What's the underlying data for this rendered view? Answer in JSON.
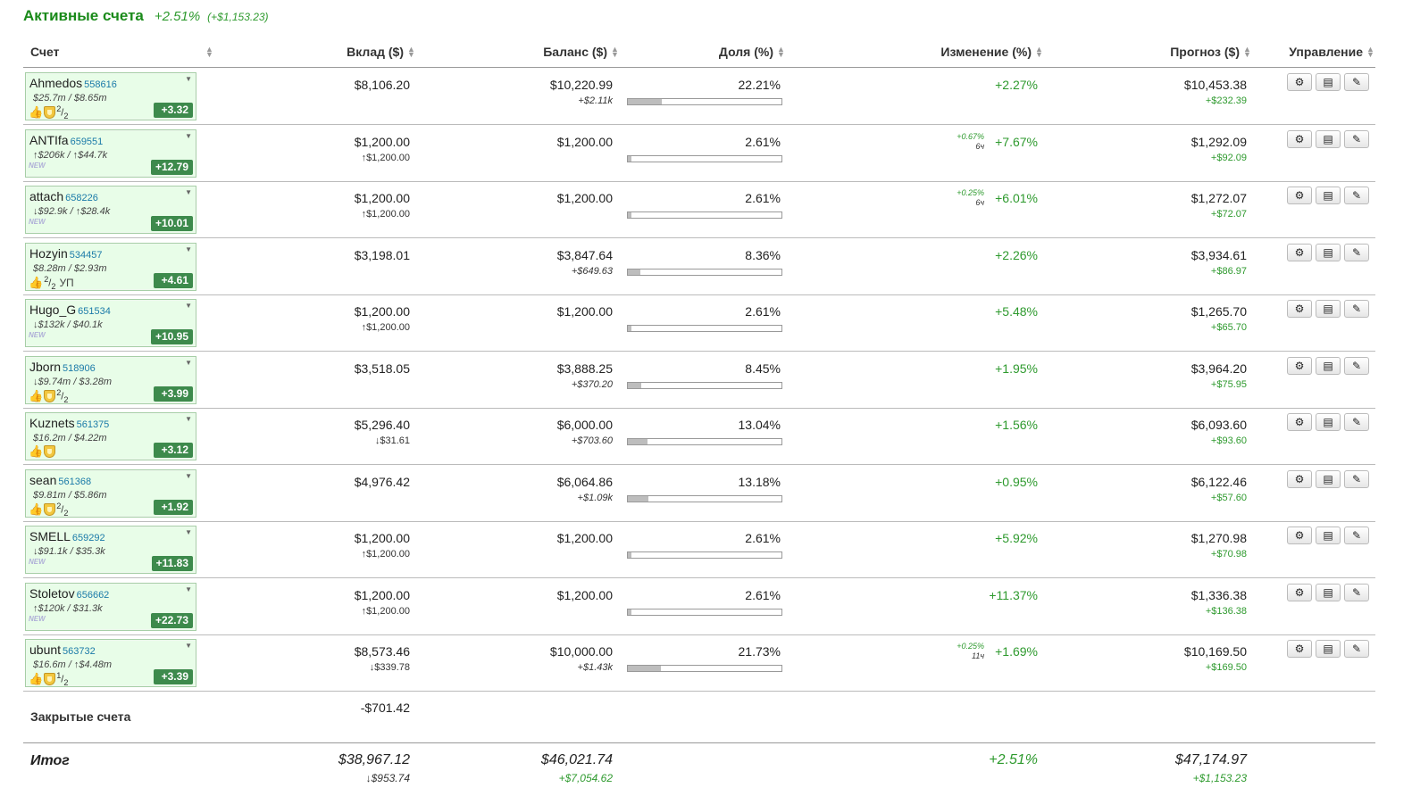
{
  "header": {
    "title": "Активные счета",
    "change_pct": "+2.51%",
    "change_abs": "(+$1,153.23)"
  },
  "columns": {
    "account": "Счет",
    "deposit": "Вклад ($)",
    "balance": "Баланс ($)",
    "share": "Доля (%)",
    "change": "Изменение (%)",
    "forecast": "Прогноз ($)",
    "manage": "Управление"
  },
  "icons": {
    "thumb": "thumbs-up-icon",
    "shield": "shield-icon",
    "settings": "gear-icon",
    "report": "list-icon",
    "edit": "pencil-icon"
  },
  "colors": {
    "accent_green": "#1a8a1a",
    "positive": "#2e9a2e",
    "card_bg": "#e8fde8",
    "score_bg": "#3d8a4c",
    "account_id": "#1a7aa8"
  },
  "rows": [
    {
      "name": "Ahmedos",
      "id": "558616",
      "stats": "$25.7m / $8.65m",
      "badges": "thumb-shield-frac",
      "frac_num": "2",
      "frac_den": "2",
      "extra": "",
      "score": "+3.32",
      "deposit": "$8,106.20",
      "deposit_sub": "",
      "balance": "$10,220.99",
      "balance_sub": "+$2.11k",
      "share": "22.21%",
      "share_value": 22.21,
      "mini_pct": "",
      "mini_time": "",
      "change": "+2.27%",
      "forecast": "$10,453.38",
      "forecast_sub": "+$232.39"
    },
    {
      "name": "ANTIfa",
      "id": "659551",
      "stats": "↑$206k / ↑$44.7k",
      "badges": "new",
      "frac_num": "",
      "frac_den": "",
      "extra": "",
      "score": "+12.79",
      "deposit": "$1,200.00",
      "deposit_sub": "↑$1,200.00",
      "balance": "$1,200.00",
      "balance_sub": "",
      "share": "2.61%",
      "share_value": 2.61,
      "mini_pct": "+0.67%",
      "mini_time": "6ч",
      "change": "+7.67%",
      "forecast": "$1,292.09",
      "forecast_sub": "+$92.09"
    },
    {
      "name": "attach",
      "id": "658226",
      "stats": "↓$92.9k / ↑$28.4k",
      "badges": "new",
      "frac_num": "",
      "frac_den": "",
      "extra": "",
      "score": "+10.01",
      "deposit": "$1,200.00",
      "deposit_sub": "↑$1,200.00",
      "balance": "$1,200.00",
      "balance_sub": "",
      "share": "2.61%",
      "share_value": 2.61,
      "mini_pct": "+0.25%",
      "mini_time": "6ч",
      "change": "+6.01%",
      "forecast": "$1,272.07",
      "forecast_sub": "+$72.07"
    },
    {
      "name": "Hozyin",
      "id": "534457",
      "stats": "$8.28m / $2.93m",
      "badges": "thumb-frac",
      "frac_num": "2",
      "frac_den": "2",
      "extra": "УП",
      "score": "+4.61",
      "deposit": "$3,198.01",
      "deposit_sub": "",
      "balance": "$3,847.64",
      "balance_sub": "+$649.63",
      "share": "8.36%",
      "share_value": 8.36,
      "mini_pct": "",
      "mini_time": "",
      "change": "+2.26%",
      "forecast": "$3,934.61",
      "forecast_sub": "+$86.97"
    },
    {
      "name": "Hugo_G",
      "id": "651534",
      "stats": "↓$132k / $40.1k",
      "badges": "new",
      "frac_num": "",
      "frac_den": "",
      "extra": "",
      "score": "+10.95",
      "deposit": "$1,200.00",
      "deposit_sub": "↑$1,200.00",
      "balance": "$1,200.00",
      "balance_sub": "",
      "share": "2.61%",
      "share_value": 2.61,
      "mini_pct": "",
      "mini_time": "",
      "change": "+5.48%",
      "forecast": "$1,265.70",
      "forecast_sub": "+$65.70"
    },
    {
      "name": "Jborn",
      "id": "518906",
      "stats": "↓$9.74m / $3.28m",
      "badges": "thumb-shield-frac",
      "frac_num": "2",
      "frac_den": "2",
      "extra": "",
      "score": "+3.99",
      "deposit": "$3,518.05",
      "deposit_sub": "",
      "balance": "$3,888.25",
      "balance_sub": "+$370.20",
      "share": "8.45%",
      "share_value": 8.45,
      "mini_pct": "",
      "mini_time": "",
      "change": "+1.95%",
      "forecast": "$3,964.20",
      "forecast_sub": "+$75.95"
    },
    {
      "name": "Kuznets",
      "id": "561375",
      "stats": "$16.2m / $4.22m",
      "badges": "thumb-shield",
      "frac_num": "",
      "frac_den": "",
      "extra": "",
      "score": "+3.12",
      "deposit": "$5,296.40",
      "deposit_sub": "↓$31.61",
      "balance": "$6,000.00",
      "balance_sub": "+$703.60",
      "share": "13.04%",
      "share_value": 13.04,
      "mini_pct": "",
      "mini_time": "",
      "change": "+1.56%",
      "forecast": "$6,093.60",
      "forecast_sub": "+$93.60"
    },
    {
      "name": "sean",
      "id": "561368",
      "stats": "$9.81m / $5.86m",
      "badges": "thumb-shield-frac",
      "frac_num": "2",
      "frac_den": "2",
      "extra": "",
      "score": "+1.92",
      "deposit": "$4,976.42",
      "deposit_sub": "",
      "balance": "$6,064.86",
      "balance_sub": "+$1.09k",
      "share": "13.18%",
      "share_value": 13.18,
      "mini_pct": "",
      "mini_time": "",
      "change": "+0.95%",
      "forecast": "$6,122.46",
      "forecast_sub": "+$57.60"
    },
    {
      "name": "SMELL",
      "id": "659292",
      "stats": "↓$91.1k / $35.3k",
      "badges": "new",
      "frac_num": "",
      "frac_den": "",
      "extra": "",
      "score": "+11.83",
      "deposit": "$1,200.00",
      "deposit_sub": "↑$1,200.00",
      "balance": "$1,200.00",
      "balance_sub": "",
      "share": "2.61%",
      "share_value": 2.61,
      "mini_pct": "",
      "mini_time": "",
      "change": "+5.92%",
      "forecast": "$1,270.98",
      "forecast_sub": "+$70.98"
    },
    {
      "name": "Stoletov",
      "id": "656662",
      "stats": "↑$120k / $31.3k",
      "badges": "new",
      "frac_num": "",
      "frac_den": "",
      "extra": "",
      "score": "+22.73",
      "deposit": "$1,200.00",
      "deposit_sub": "↑$1,200.00",
      "balance": "$1,200.00",
      "balance_sub": "",
      "share": "2.61%",
      "share_value": 2.61,
      "mini_pct": "",
      "mini_time": "",
      "change": "+11.37%",
      "forecast": "$1,336.38",
      "forecast_sub": "+$136.38"
    },
    {
      "name": "ubunt",
      "id": "563732",
      "stats": "$16.6m / ↑$4.48m",
      "badges": "thumb-shield-frac",
      "frac_num": "1",
      "frac_den": "2",
      "extra": "",
      "score": "+3.39",
      "deposit": "$8,573.46",
      "deposit_sub": "↓$339.78",
      "balance": "$10,000.00",
      "balance_sub": "+$1.43k",
      "share": "21.73%",
      "share_value": 21.73,
      "mini_pct": "+0.25%",
      "mini_time": "11ч",
      "change": "+1.69%",
      "forecast": "$10,169.50",
      "forecast_sub": "+$169.50"
    }
  ],
  "closed": {
    "label": "Закрытые счета",
    "value": "-$701.42"
  },
  "total": {
    "label": "Итог",
    "deposit": "$38,967.12",
    "deposit_sub": "↓$953.74",
    "balance": "$46,021.74",
    "balance_sub": "+$7,054.62",
    "change": "+2.51%",
    "forecast": "$47,174.97",
    "forecast_sub": "+$1,153.23"
  }
}
